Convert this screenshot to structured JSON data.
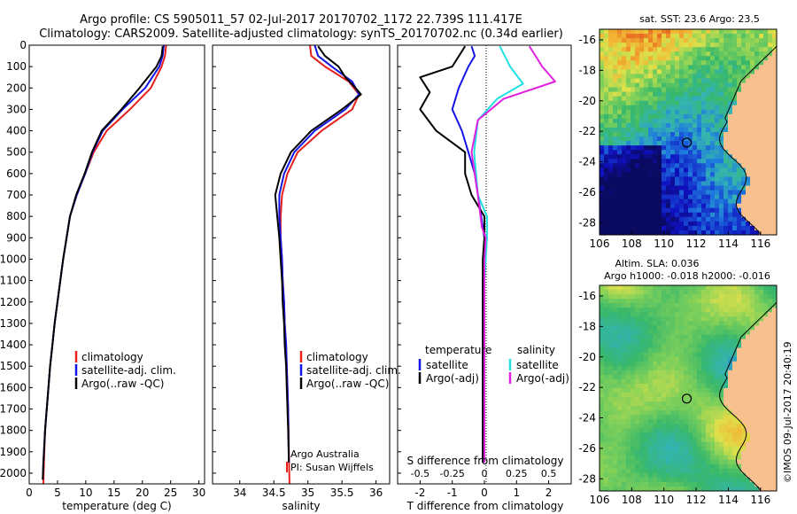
{
  "header": {
    "title_line1": "Argo profile: CS 5905011_57 02-Jul-2017 20170702_1172 22.739S 111.417E",
    "title_line2": "Climatology: CARS2009. Satellite-adjusted climatology: synTS_20170702.nc (0.34d earlier)"
  },
  "colors": {
    "climatology": "#e8201c",
    "satellite": "#1414e6",
    "argo": "#000000",
    "sal_satellite": "#22e0e0",
    "sal_argo": "#e020e0",
    "land": "#f7c08e"
  },
  "chart_data": [
    {
      "type": "line",
      "id": "temperature",
      "xlabel": "temperature (deg C)",
      "ylabel": "",
      "xlim": [
        0,
        31
      ],
      "ylim": [
        2050,
        0
      ],
      "xticks": [
        0,
        5,
        10,
        15,
        20,
        25,
        30
      ],
      "yticks": [
        0,
        100,
        200,
        300,
        400,
        500,
        600,
        700,
        800,
        900,
        1000,
        1100,
        1200,
        1300,
        1400,
        1500,
        1600,
        1700,
        1800,
        1900,
        2000
      ],
      "legend": [
        "climatology",
        "satellite-adj. clim.",
        "Argo(..raw -QC)"
      ],
      "series": [
        {
          "name": "climatology",
          "x": [
            24.2,
            24.0,
            23.4,
            21.5,
            17.8,
            13.7,
            11.4,
            9.9,
            8.4,
            7.2,
            6.6,
            6.0,
            5.5,
            5.0,
            4.5,
            4.1,
            3.7,
            3.4,
            3.1,
            2.8,
            2.6,
            2.5
          ],
          "y": [
            0,
            50,
            100,
            200,
            300,
            400,
            500,
            600,
            700,
            800,
            900,
            1000,
            1100,
            1200,
            1300,
            1400,
            1500,
            1600,
            1700,
            1800,
            1950,
            2050
          ]
        },
        {
          "name": "satellite-adj. clim.",
          "x": [
            23.8,
            23.6,
            23.0,
            20.5,
            16.5,
            13.0,
            11.2,
            9.9,
            8.4,
            7.2,
            6.6,
            6.0,
            5.5,
            5.0,
            4.5,
            4.1,
            3.7,
            3.4,
            3.1,
            2.8,
            2.5,
            2.4
          ],
          "y": [
            0,
            50,
            100,
            200,
            300,
            400,
            500,
            600,
            700,
            800,
            900,
            1000,
            1100,
            1200,
            1300,
            1400,
            1500,
            1600,
            1700,
            1800,
            1950,
            2030
          ]
        },
        {
          "name": "Argo(..raw -QC)",
          "x": [
            23.6,
            23.4,
            22.5,
            19.5,
            16.3,
            12.8,
            11.1,
            9.8,
            8.3,
            7.2,
            6.6,
            6.0,
            5.5,
            5.0,
            4.5,
            4.1,
            3.7,
            3.4,
            3.1,
            2.8,
            2.5,
            2.4
          ],
          "y": [
            5,
            50,
            100,
            200,
            300,
            400,
            500,
            600,
            700,
            800,
            900,
            1000,
            1100,
            1200,
            1300,
            1400,
            1500,
            1600,
            1700,
            1800,
            1950,
            2030
          ]
        }
      ]
    },
    {
      "type": "line",
      "id": "salinity",
      "xlabel": "salinity",
      "xlim": [
        33.6,
        36.2
      ],
      "ylim": [
        2050,
        0
      ],
      "xticks": [
        34,
        34.5,
        35,
        35.5,
        36
      ],
      "xticklabels": [
        "34",
        "34.5",
        "35",
        "35.5",
        "36"
      ],
      "legend": [
        "climatology",
        "satellite-adj. clim.",
        "Argo(..raw -QC)"
      ],
      "annotation": [
        "Argo Australia",
        "PI: Susan Wijffels"
      ],
      "series": [
        {
          "name": "climatology",
          "x": [
            35.03,
            35.05,
            35.25,
            35.6,
            35.75,
            35.65,
            35.2,
            34.85,
            34.7,
            34.62,
            34.6,
            34.6,
            34.62,
            34.63,
            34.65,
            34.66,
            34.68,
            34.69,
            34.7,
            34.71,
            34.72,
            34.73
          ],
          "y": [
            0,
            50,
            100,
            170,
            230,
            300,
            400,
            500,
            600,
            700,
            800,
            900,
            1000,
            1100,
            1200,
            1300,
            1400,
            1500,
            1600,
            1700,
            1900,
            2050
          ]
        },
        {
          "name": "satellite-adj. clim.",
          "x": [
            35.1,
            35.15,
            35.35,
            35.65,
            35.75,
            35.55,
            35.1,
            34.8,
            34.65,
            34.58,
            34.58,
            34.6,
            34.62,
            34.63,
            34.65,
            34.66,
            34.68,
            34.69,
            34.7,
            34.71,
            34.72
          ],
          "y": [
            0,
            50,
            100,
            170,
            230,
            300,
            400,
            500,
            600,
            700,
            800,
            900,
            1000,
            1100,
            1200,
            1300,
            1400,
            1500,
            1600,
            1700,
            1950
          ]
        },
        {
          "name": "Argo(..raw -QC)",
          "x": [
            35.15,
            35.25,
            35.45,
            35.55,
            35.7,
            35.78,
            35.5,
            35.05,
            34.75,
            34.6,
            34.52,
            34.55,
            34.58,
            34.6,
            34.62,
            34.63,
            34.65,
            34.66,
            34.68,
            34.69,
            34.7,
            34.71,
            34.72
          ],
          "y": [
            5,
            50,
            100,
            150,
            200,
            230,
            300,
            400,
            500,
            600,
            700,
            800,
            900,
            1000,
            1100,
            1200,
            1300,
            1400,
            1500,
            1600,
            1700,
            1800,
            1950
          ]
        }
      ]
    },
    {
      "type": "line",
      "id": "difference",
      "xlabel": "T difference from climatology",
      "xlabel_top": "S difference from climatology",
      "xlim": [
        -2.7,
        2.7
      ],
      "ylim": [
        2050,
        0
      ],
      "xticks": [
        -2,
        -1,
        0,
        1,
        2
      ],
      "xticklabels": [
        "-2",
        "-1",
        "0",
        "1",
        "2"
      ],
      "sticks": [
        -0.5,
        -0.25,
        0,
        0.25,
        0.5
      ],
      "sticklabels": [
        "-0.5",
        "-0.25",
        "0",
        "0.25",
        "0.5"
      ],
      "legend": {
        "temperature": [
          "satellite",
          "Argo(-adj)"
        ],
        "salinity": [
          "satellite",
          "Argo(-adj)"
        ],
        "titles": [
          "temperature",
          "salinity"
        ]
      },
      "series": [
        {
          "name": "T satellite",
          "x": [
            -0.4,
            -0.3,
            -0.5,
            -0.8,
            -1.0,
            -0.7,
            -0.5,
            -0.3,
            -0.2,
            -0.1,
            0,
            0,
            -0.05,
            -0.05,
            -0.05,
            -0.05,
            -0.05,
            -0.05,
            -0.05,
            -0.05,
            -0.05
          ],
          "y": [
            5,
            50,
            100,
            200,
            300,
            400,
            500,
            600,
            700,
            800,
            900,
            1000,
            1100,
            1200,
            1300,
            1400,
            1500,
            1600,
            1700,
            1800,
            1950
          ]
        },
        {
          "name": "T Argo(-adj)",
          "x": [
            -0.6,
            -1.0,
            -2.0,
            -1.7,
            -2.0,
            -1.5,
            -0.6,
            -0.6,
            -0.4,
            0,
            0,
            -0.05,
            -0.05,
            -0.05,
            -0.05,
            -0.05,
            -0.05,
            -0.05,
            -0.05,
            -0.05
          ],
          "y": [
            5,
            100,
            150,
            220,
            300,
            400,
            500,
            600,
            700,
            800,
            900,
            1000,
            1100,
            1200,
            1300,
            1400,
            1500,
            1600,
            1700,
            1950
          ]
        },
        {
          "name": "S satellite",
          "x": [
            0.12,
            0.2,
            0.3,
            0.1,
            -0.05,
            -0.08,
            -0.05,
            0.02,
            0.02,
            0.01,
            0,
            0,
            0,
            0,
            0,
            0
          ],
          "y": [
            5,
            100,
            180,
            250,
            350,
            500,
            700,
            800,
            900,
            1000,
            1100,
            1200,
            1400,
            1600,
            1800,
            1950
          ]
        },
        {
          "name": "S Argo(-adj)",
          "x": [
            0.35,
            0.45,
            0.55,
            0.15,
            -0.05,
            -0.1,
            -0.05,
            -0.02,
            0.01,
            0,
            0,
            0,
            0,
            0
          ],
          "y": [
            5,
            100,
            170,
            250,
            350,
            500,
            700,
            850,
            900,
            1000,
            1200,
            1400,
            1600,
            1950
          ]
        }
      ]
    },
    {
      "type": "heatmap",
      "id": "sst_map",
      "title": "sat. SST: 23.6  Argo: 23.5",
      "xticks": [
        "106",
        "108",
        "110",
        "112",
        "114",
        "116"
      ],
      "yticks": [
        "-16",
        "-18",
        "-20",
        "-22",
        "-24",
        "-26",
        "-28"
      ],
      "marker": {
        "lon": 111.417,
        "lat": -22.739
      }
    },
    {
      "type": "heatmap",
      "id": "sla_map",
      "title_line1": "Altim. SLA: 0.036",
      "title_line2": "Argo h1000: -0.018  h2000: -0.016",
      "xticks": [
        "106",
        "108",
        "110",
        "112",
        "114",
        "116"
      ],
      "yticks": [
        "-16",
        "-18",
        "-20",
        "-22",
        "-24",
        "-26",
        "-28"
      ],
      "marker": {
        "lon": 111.417,
        "lat": -22.739
      }
    }
  ],
  "credit": "©IMOS 09-Jul-2017 20:40:19"
}
